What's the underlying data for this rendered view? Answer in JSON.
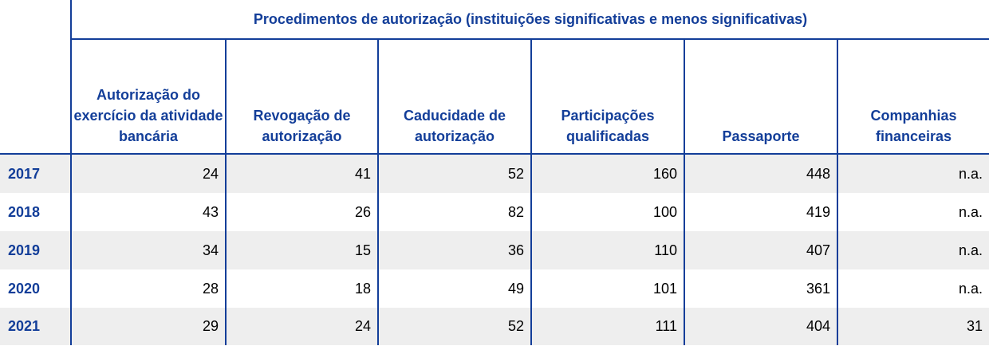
{
  "table": {
    "super_header": "Procedimentos de autorização (instituições significativas e menos significativas)",
    "columns": [
      "Autorização do exercício da atividade bancária",
      "Revogação de autorização",
      "Caducidade de autorização",
      "Participações qualificadas",
      "Passaporte",
      "Companhias financeiras"
    ],
    "rows": [
      {
        "year": "2017",
        "values": [
          "24",
          "41",
          "52",
          "160",
          "448",
          "n.a."
        ]
      },
      {
        "year": "2018",
        "values": [
          "43",
          "26",
          "82",
          "100",
          "419",
          "n.a."
        ]
      },
      {
        "year": "2019",
        "values": [
          "34",
          "15",
          "36",
          "110",
          "407",
          "n.a."
        ]
      },
      {
        "year": "2020",
        "values": [
          "28",
          "18",
          "49",
          "101",
          "361",
          "n.a."
        ]
      },
      {
        "year": "2021",
        "values": [
          "29",
          "24",
          "52",
          "111",
          "404",
          "31"
        ]
      }
    ]
  },
  "colors": {
    "header_blue": "#133e99",
    "row_shade": "#eeeeee",
    "text": "#000000"
  }
}
